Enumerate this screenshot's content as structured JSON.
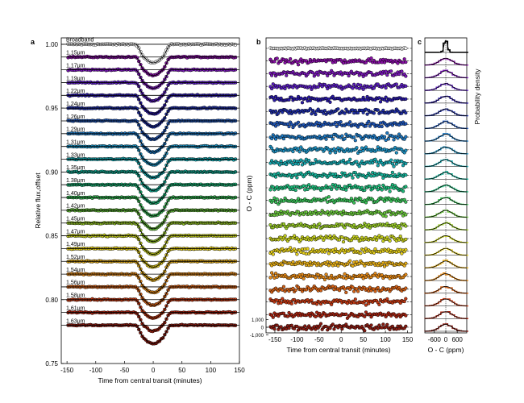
{
  "chart_data": [
    {
      "panel_label": "a",
      "type": "line",
      "title": "",
      "xlabel": "Time from central transit (minutes)",
      "ylabel": "Relative flux,offset",
      "xlim": [
        -160,
        150
      ],
      "ylim": [
        0.75,
        1.005
      ],
      "x_ticks": [
        -150,
        -100,
        -50,
        0,
        50,
        100,
        150
      ],
      "y_ticks": [
        "1.00",
        "0.95",
        "0.90",
        "0.85",
        "0.80",
        "0.75"
      ],
      "y_tick_values": [
        1.0,
        0.95,
        0.9,
        0.85,
        0.8,
        0.75
      ],
      "transit_depth": 0.0145,
      "ingress_start": -31,
      "ingress_end": -14,
      "series_labels": [
        "Broadband",
        "1.15μm",
        "1.17μm",
        "1.19μm",
        "1.22μm",
        "1.24μm",
        "1.26μm",
        "1.29μm",
        "1.31μm",
        "1.33μm",
        "1.35μm",
        "1.38μm",
        "1.40μm",
        "1.42μm",
        "1.45μm",
        "1.47μm",
        "1.49μm",
        "1.52μm",
        "1.54μm",
        "1.56μm",
        "1.58μm",
        "1.61μm",
        "1.63μm"
      ],
      "baselines": [
        1.0,
        0.99,
        0.98,
        0.97,
        0.96,
        0.95,
        0.94,
        0.93,
        0.92,
        0.91,
        0.9,
        0.89,
        0.88,
        0.87,
        0.86,
        0.85,
        0.84,
        0.83,
        0.82,
        0.81,
        0.8,
        0.79,
        0.78
      ]
    },
    {
      "panel_label": "b",
      "type": "scatter",
      "xlabel": "Time from central transit (minutes)",
      "ylabel": "O - C (ppm)",
      "xlim": [
        -170,
        160
      ],
      "x_ticks": [
        -150,
        -100,
        -50,
        0,
        50,
        100,
        150
      ],
      "y_ticks": [
        "1,000",
        "0",
        "-1,000"
      ],
      "y_tick_values": [
        1000,
        0,
        -1000
      ]
    },
    {
      "panel_label": "c",
      "type": "line",
      "xlabel": "O - C (ppm)",
      "ylabel": "Probability density",
      "xlim": [
        -1100,
        1100
      ],
      "x_ticks": [
        -600,
        0,
        600
      ],
      "x_tick_labels": [
        "-600",
        "0",
        "600"
      ]
    }
  ],
  "colors": [
    "#ffffff",
    "#8a0fa8",
    "#7a18b8",
    "#5c1fc2",
    "#2b1aa8",
    "#1f2ea6",
    "#1f56b8",
    "#1f7ac4",
    "#1e93c4",
    "#17a8b0",
    "#17b39b",
    "#1fbc7c",
    "#3cc45b",
    "#6bc93e",
    "#9ccf2a",
    "#c8d21f",
    "#e6d01c",
    "#e8b01a",
    "#e68a18",
    "#d66216",
    "#c43a14",
    "#a82512",
    "#8a1c12"
  ]
}
